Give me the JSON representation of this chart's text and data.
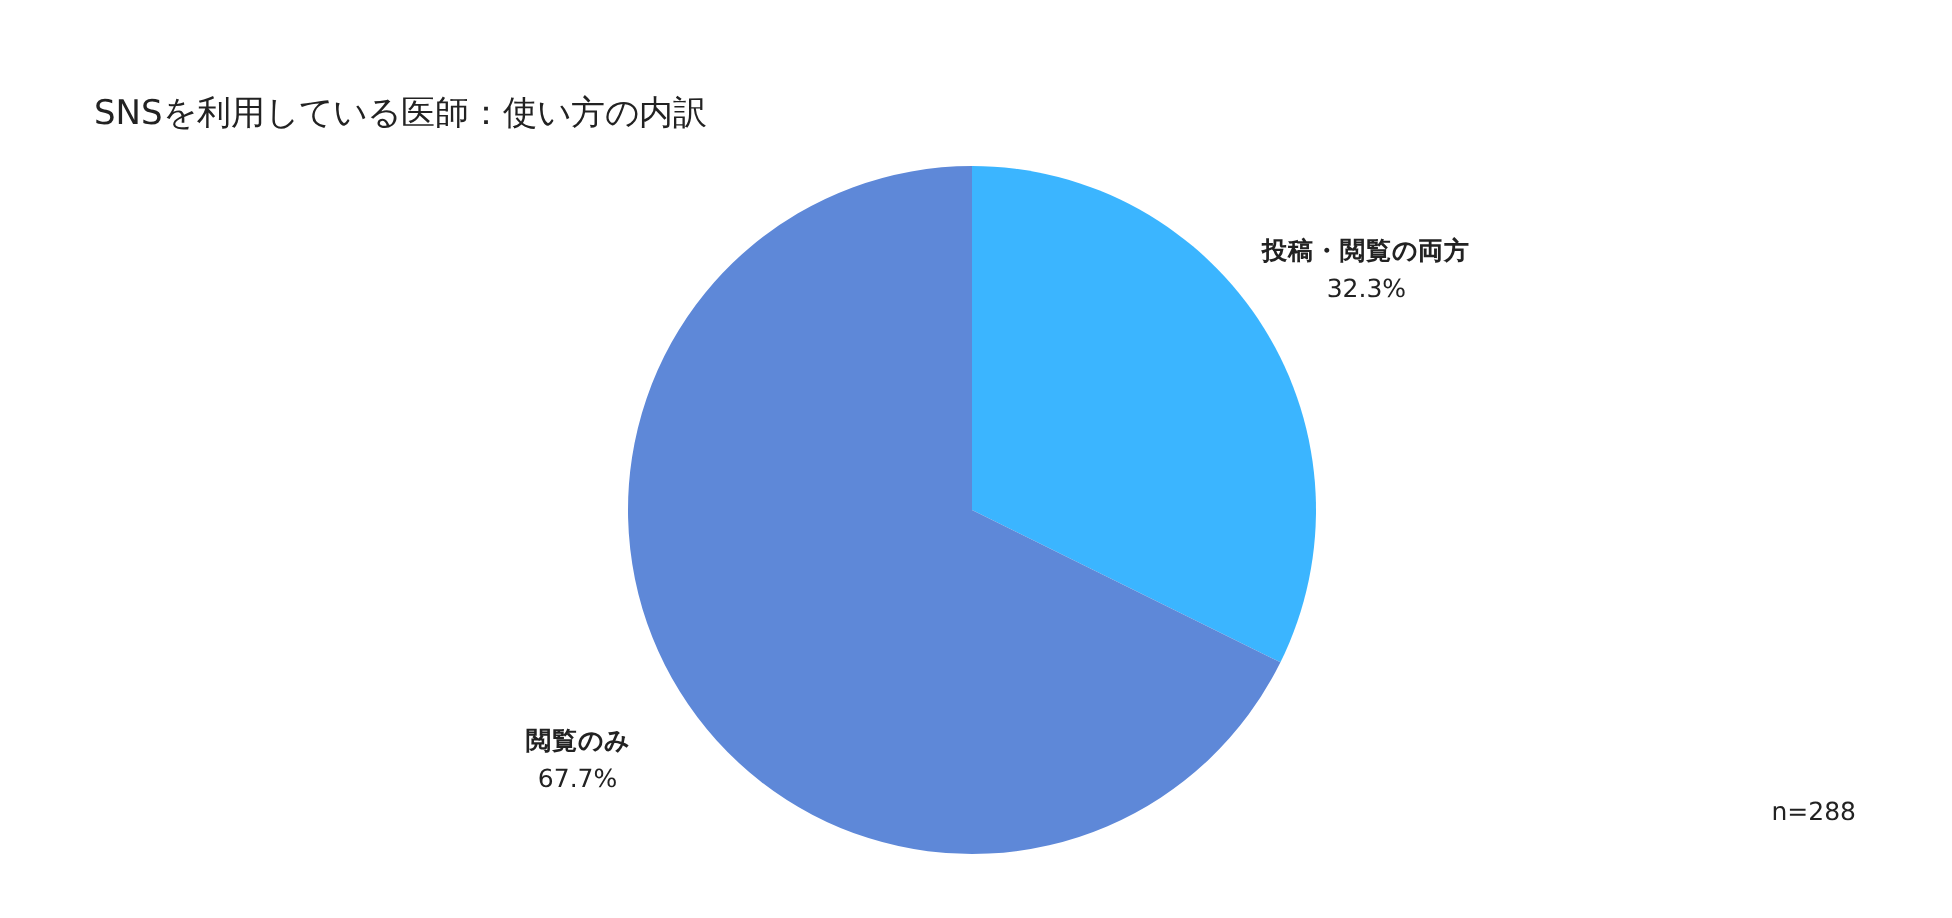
{
  "chart_data": {
    "type": "pie",
    "title": "SNSを利用している医師：使い方の内訳",
    "categories": [
      "投稿・閲覧の両方",
      "閲覧のみ"
    ],
    "values": [
      32.3,
      67.7
    ],
    "colors": [
      "#3bb5ff",
      "#5e88d8"
    ],
    "value_labels": [
      "32.3%",
      "67.7%"
    ],
    "annotations": [
      "n=288"
    ]
  }
}
